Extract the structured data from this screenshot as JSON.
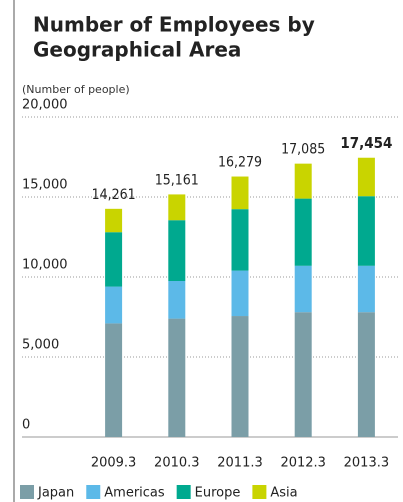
{
  "chart_data": {
    "type": "stacked_bar",
    "title": [
      "Number of Employees by",
      "Geographical Area"
    ],
    "y_axis_label": "(Number of people)",
    "categories": [
      "2009.3",
      "2010.3",
      "2011.3",
      "2012.3",
      "2013.3"
    ],
    "series": [
      {
        "name": "Japan",
        "color": "#7b9ea7",
        "values": [
          7100,
          7400,
          7560,
          7800,
          7800
        ]
      },
      {
        "name": "Americas",
        "color": "#5cb9e8",
        "values": [
          2300,
          2350,
          2840,
          2900,
          2900
        ]
      },
      {
        "name": "Europe",
        "color": "#00a98f",
        "values": [
          3400,
          3800,
          3840,
          4200,
          4350
        ]
      },
      {
        "name": "Asia",
        "color": "#c9d400",
        "values": [
          1461,
          1611,
          2039,
          2185,
          2404
        ]
      }
    ],
    "totals": [
      14261,
      15161,
      16279,
      17085,
      17454
    ],
    "total_labels": [
      "14,261",
      "15,161",
      "16,279",
      "17,085",
      "17,454"
    ],
    "ylim": [
      0,
      20000
    ],
    "yticks": [
      0,
      {
        "value": 5000,
        "label": "5,000"
      },
      {
        "value": 10000,
        "label": "10,000"
      },
      {
        "value": 15000,
        "label": "15,000"
      },
      {
        "value": 20000,
        "label": "20,000"
      }
    ],
    "grid": true,
    "legend": "bottom"
  }
}
